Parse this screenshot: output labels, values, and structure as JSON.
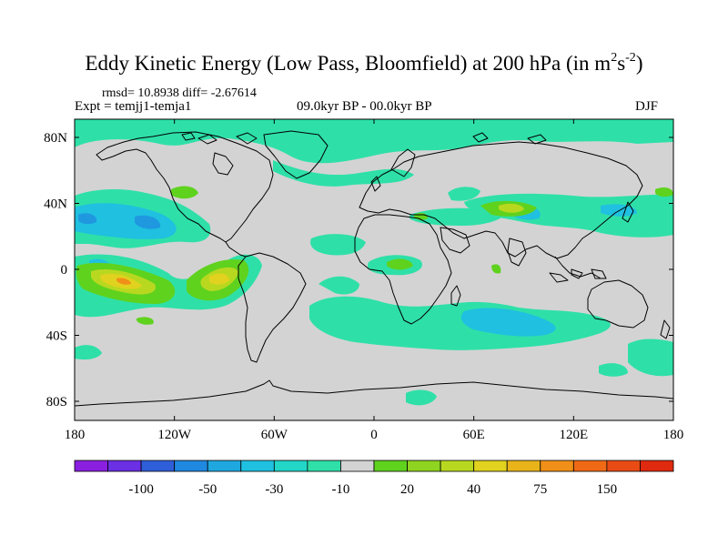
{
  "title": {
    "main": "Eddy Kinetic Energy (Low Pass, Bloomfield) at 200 hPa (in m",
    "exp1": "2",
    "mid": "s",
    "exp2": "-2",
    "close": ")"
  },
  "stats": "rmsd= 10.8938 diff= -2.67614",
  "experiment": "Expt = temjj1-temja1",
  "period": "09.0kyr BP - 00.0kyr BP",
  "season": "DJF",
  "colors": {
    "land_gray": "#d3d3d3",
    "neutral_range": "-10 to 20",
    "cyan": "#2fdfb5",
    "blue_light": "#29c3de",
    "blue": "#1f98e0",
    "green": "#5fd21e",
    "green_yellow": "#a8d820",
    "yellow": "#e5c21a",
    "orange": "#f2a014"
  },
  "map": {
    "type": "lat-lon contour map",
    "x_ticks": [
      {
        "label": "180"
      },
      {
        "label": "120W"
      },
      {
        "label": "60W"
      },
      {
        "label": "0"
      },
      {
        "label": "60E"
      },
      {
        "label": "120E"
      },
      {
        "label": "180"
      }
    ],
    "y_ticks": [
      {
        "label": "80N"
      },
      {
        "label": "40N"
      },
      {
        "label": "0"
      },
      {
        "label": "40S"
      },
      {
        "label": "80S"
      }
    ]
  },
  "colorbar": {
    "swatches": [
      "#8b1fe0",
      "#6b2fe4",
      "#2f5fd8",
      "#1f88e0",
      "#1fa8e0",
      "#20c0e0",
      "#22d6c8",
      "#2ee0a8",
      "#d3d3d3",
      "#5fd21e",
      "#8fd420",
      "#b8d820",
      "#e0d21e",
      "#e8b41a",
      "#f09018",
      "#f06a16",
      "#e84c14",
      "#e02a10"
    ],
    "labels": [
      "-100",
      "-50",
      "-30",
      "-10",
      "20",
      "40",
      "75",
      "150"
    ]
  }
}
